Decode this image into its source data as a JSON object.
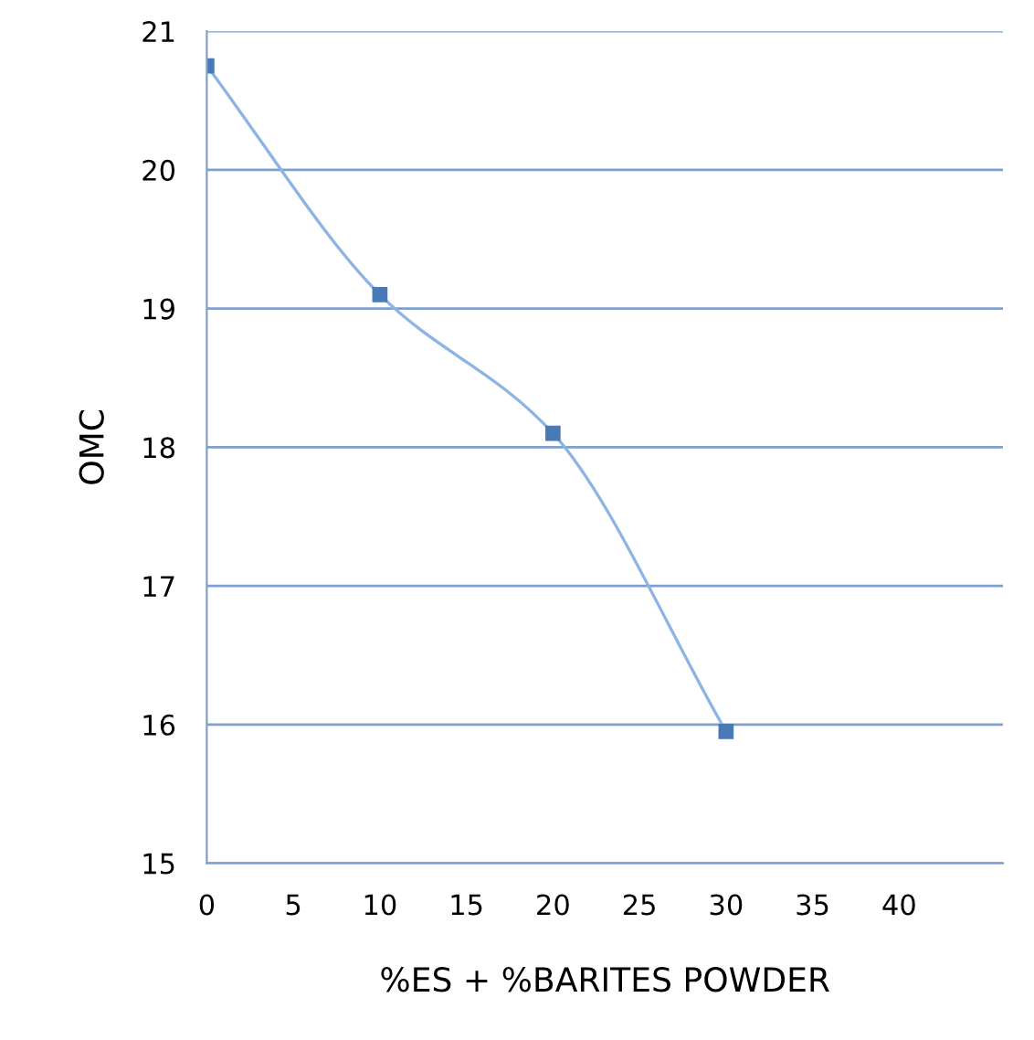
{
  "chart_data": {
    "type": "line",
    "xlabel": "%ES + %BARITES POWDER",
    "ylabel": "OMC",
    "x": [
      0,
      10,
      20,
      30
    ],
    "series": [
      {
        "values": [
          20.75,
          19.1,
          18.1,
          15.95
        ],
        "color": "#4a7ab5"
      }
    ],
    "xlim": [
      0,
      46
    ],
    "xticks": [
      0,
      5,
      10,
      15,
      20,
      25,
      30,
      35,
      40
    ],
    "ylim": [
      15,
      21
    ],
    "yticks": [
      15,
      16,
      17,
      18,
      19,
      20,
      21
    ],
    "grid": "y",
    "marker": "square",
    "line_style": "solid",
    "legend": false
  }
}
